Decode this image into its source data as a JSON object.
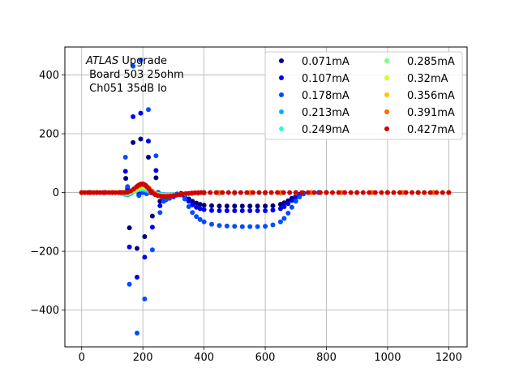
{
  "chart_data": {
    "type": "scatter",
    "annotation": {
      "experiment": "ATLAS",
      "experiment_suffix": " Upgrade",
      "line2": " Board 503 25ohm",
      "line3": " Ch051 35dB lo"
    },
    "xlim": [
      -55,
      1260
    ],
    "ylim": [
      -525,
      495
    ],
    "xticks": [
      0,
      200,
      400,
      600,
      800,
      1000,
      1200
    ],
    "yticks": [
      -400,
      -200,
      0,
      200,
      400
    ],
    "grid": true,
    "legend": {
      "position": "top-right",
      "ncol": 2
    },
    "series": [
      {
        "name": "0.071mA",
        "color": "#00007f",
        "x": [
          0,
          25,
          50,
          75,
          100,
          125,
          137,
          144,
          150,
          156,
          162,
          168,
          175,
          181,
          187,
          193,
          200,
          206,
          212,
          218,
          225,
          231,
          237,
          243,
          250,
          256,
          262,
          268,
          275,
          287,
          300,
          312,
          325,
          337,
          350,
          362,
          375,
          387,
          400,
          425,
          450,
          475,
          500,
          525,
          550,
          575,
          600,
          625,
          650,
          662,
          675,
          687,
          700,
          712,
          725,
          750,
          775,
          800,
          850,
          900,
          950,
          1000,
          1050,
          1100,
          1150,
          1200
        ],
        "y": [
          0,
          0,
          0,
          0,
          0,
          0,
          0,
          48,
          12,
          -120,
          -2,
          170,
          8,
          -190,
          -5,
          182,
          0,
          -150,
          -3,
          120,
          0,
          -80,
          -1,
          50,
          0,
          -30,
          -8,
          -14,
          -12,
          -10,
          -8,
          -5,
          -3,
          -10,
          -22,
          -30,
          -36,
          -40,
          -43,
          -45,
          -46,
          -46,
          -46,
          -46,
          -46,
          -46,
          -46,
          -45,
          -40,
          -35,
          -28,
          -20,
          -12,
          -6,
          -2,
          0,
          0,
          0,
          0,
          0,
          0,
          0,
          0,
          0,
          0,
          0
        ]
      },
      {
        "name": "0.107mA",
        "color": "#0000f1",
        "x": [
          0,
          25,
          50,
          75,
          100,
          125,
          137,
          143,
          150,
          156,
          162,
          168,
          175,
          181,
          187,
          193,
          200,
          206,
          212,
          218,
          225,
          231,
          237,
          243,
          250,
          256,
          262,
          268,
          275,
          287,
          300,
          312,
          325,
          337,
          350,
          362,
          375,
          387,
          400,
          425,
          450,
          475,
          500,
          525,
          550,
          575,
          600,
          625,
          650,
          662,
          675,
          687,
          700,
          712,
          725,
          750,
          775,
          800,
          850,
          900,
          950,
          1000,
          1050,
          1100,
          1150,
          1200
        ],
        "y": [
          0,
          0,
          0,
          0,
          0,
          0,
          0,
          72,
          15,
          -185,
          -2,
          258,
          10,
          -288,
          -6,
          270,
          0,
          -220,
          -3,
          175,
          0,
          -118,
          -2,
          75,
          0,
          -45,
          -10,
          -18,
          -15,
          -12,
          -10,
          -6,
          -4,
          -14,
          -30,
          -42,
          -50,
          -55,
          -58,
          -61,
          -62,
          -62,
          -62,
          -62,
          -62,
          -62,
          -62,
          -60,
          -55,
          -48,
          -38,
          -27,
          -16,
          -8,
          -3,
          0,
          0,
          0,
          0,
          0,
          0,
          0,
          0,
          0,
          0,
          0
        ]
      },
      {
        "name": "0.178mA",
        "color": "#004cff",
        "x": [
          0,
          25,
          50,
          75,
          100,
          125,
          137,
          143,
          150,
          156,
          162,
          168,
          175,
          181,
          187,
          193,
          200,
          206,
          212,
          218,
          225,
          231,
          237,
          243,
          250,
          256,
          262,
          268,
          275,
          287,
          300,
          312,
          325,
          337,
          350,
          362,
          375,
          387,
          400,
          425,
          450,
          475,
          500,
          525,
          550,
          575,
          600,
          625,
          650,
          662,
          675,
          687,
          700,
          712,
          725,
          750,
          775,
          800,
          850,
          900,
          950,
          1000,
          1050,
          1100,
          1150,
          1200
        ],
        "y": [
          0,
          0,
          0,
          0,
          0,
          0,
          0,
          120,
          20,
          -312,
          -3,
          430,
          15,
          -478,
          -10,
          450,
          0,
          -362,
          -4,
          282,
          0,
          -195,
          -3,
          125,
          0,
          -68,
          -14,
          -30,
          -25,
          -20,
          -15,
          -5,
          -8,
          -22,
          -48,
          -68,
          -82,
          -92,
          -100,
          -108,
          -112,
          -114,
          -115,
          -116,
          -116,
          -116,
          -115,
          -110,
          -100,
          -88,
          -70,
          -50,
          -30,
          -15,
          -5,
          0,
          0,
          0,
          0,
          0,
          0,
          0,
          0,
          0,
          0,
          0
        ]
      },
      {
        "name": "0.213mA",
        "color": "#00b0ff",
        "x": [
          0,
          50,
          100,
          130,
          140,
          150,
          160,
          170,
          180,
          190,
          200,
          210,
          220,
          230,
          240,
          250,
          260,
          270,
          280,
          290,
          300,
          320,
          340,
          360,
          380,
          400,
          450,
          500,
          550,
          600,
          650,
          700,
          750,
          800,
          850,
          900,
          950,
          1000,
          1050,
          1100,
          1150,
          1200
        ],
        "y": [
          0,
          0,
          0,
          -3,
          -6,
          -8,
          -4,
          3,
          8,
          10,
          10,
          8,
          4,
          0,
          -3,
          -5,
          -6,
          -7,
          -8,
          -8,
          -7,
          -6,
          -5,
          -4,
          -3,
          -3,
          -3,
          -3,
          -3,
          -3,
          -3,
          -2,
          -1,
          0,
          0,
          0,
          0,
          0,
          0,
          0,
          0,
          0
        ]
      },
      {
        "name": "0.249mA",
        "color": "#29ffce",
        "x": [
          0,
          50,
          100,
          130,
          140,
          150,
          160,
          170,
          180,
          190,
          200,
          210,
          220,
          230,
          240,
          250,
          260,
          270,
          280,
          290,
          300,
          320,
          340,
          360,
          380,
          400,
          450,
          500,
          550,
          600,
          650,
          700,
          750,
          800,
          850,
          900,
          950,
          1000,
          1050,
          1100,
          1150,
          1200
        ],
        "y": [
          0,
          0,
          0,
          -2,
          -4,
          -5,
          -2,
          3,
          8,
          12,
          13,
          11,
          6,
          1,
          -3,
          -6,
          -8,
          -9,
          -9,
          -9,
          -8,
          -7,
          -5,
          -4,
          -3,
          -2,
          -2,
          -2,
          -2,
          -2,
          -2,
          -1,
          -1,
          0,
          0,
          0,
          0,
          0,
          0,
          0,
          0,
          0
        ]
      },
      {
        "name": "0.285mA",
        "color": "#7dff7a",
        "x": [
          0,
          50,
          100,
          130,
          140,
          150,
          160,
          170,
          180,
          190,
          200,
          210,
          220,
          230,
          240,
          250,
          260,
          270,
          280,
          290,
          300,
          320,
          340,
          360,
          380,
          400,
          450,
          500,
          550,
          600,
          650,
          700,
          750,
          800,
          850,
          900,
          950,
          1000,
          1050,
          1100,
          1150,
          1200
        ],
        "y": [
          0,
          0,
          0,
          -1,
          -2,
          -3,
          0,
          5,
          11,
          16,
          18,
          15,
          9,
          3,
          -3,
          -7,
          -9,
          -10,
          -10,
          -10,
          -9,
          -7,
          -5,
          -3,
          -2,
          -1,
          -1,
          -1,
          -1,
          -1,
          -1,
          -1,
          0,
          0,
          0,
          0,
          0,
          0,
          0,
          0,
          0,
          0
        ]
      },
      {
        "name": "0.32mA",
        "color": "#ceff29",
        "x": [
          0,
          50,
          100,
          130,
          140,
          150,
          160,
          170,
          180,
          190,
          200,
          210,
          220,
          230,
          240,
          250,
          260,
          270,
          280,
          290,
          300,
          320,
          340,
          360,
          380,
          400,
          450,
          500,
          550,
          600,
          650,
          700,
          750,
          800,
          850,
          900,
          950,
          1000,
          1050,
          1100,
          1150,
          1200
        ],
        "y": [
          0,
          0,
          0,
          0,
          0,
          0,
          3,
          8,
          14,
          20,
          22,
          19,
          12,
          4,
          -3,
          -8,
          -10,
          -11,
          -11,
          -11,
          -10,
          -7,
          -4,
          -2,
          -1,
          -1,
          0,
          0,
          0,
          0,
          0,
          0,
          0,
          0,
          0,
          0,
          0,
          0,
          0,
          0,
          0,
          0
        ]
      },
      {
        "name": "0.356mA",
        "color": "#ffc400",
        "x": [
          0,
          50,
          100,
          130,
          140,
          150,
          160,
          170,
          180,
          190,
          200,
          210,
          220,
          230,
          240,
          250,
          260,
          270,
          280,
          290,
          300,
          320,
          340,
          360,
          380,
          400,
          450,
          500,
          550,
          600,
          650,
          700,
          750,
          800,
          850,
          900,
          950,
          1000,
          1050,
          1100,
          1150,
          1200
        ],
        "y": [
          0,
          0,
          0,
          0,
          0,
          1,
          4,
          10,
          17,
          23,
          25,
          22,
          14,
          5,
          -3,
          -9,
          -11,
          -12,
          -12,
          -11,
          -10,
          -7,
          -4,
          -2,
          -1,
          0,
          0,
          0,
          0,
          0,
          0,
          0,
          0,
          0,
          0,
          0,
          0,
          0,
          0,
          0,
          0,
          0
        ]
      },
      {
        "name": "0.391mA",
        "color": "#ff6800",
        "x": [
          0,
          50,
          100,
          130,
          140,
          150,
          160,
          170,
          180,
          190,
          200,
          210,
          220,
          230,
          240,
          250,
          260,
          270,
          280,
          290,
          300,
          320,
          340,
          360,
          380,
          400,
          450,
          500,
          550,
          600,
          650,
          700,
          750,
          800,
          850,
          900,
          950,
          1000,
          1050,
          1100,
          1150,
          1200
        ],
        "y": [
          0,
          0,
          0,
          0,
          0,
          1,
          5,
          11,
          19,
          25,
          27,
          24,
          15,
          5,
          -4,
          -10,
          -12,
          -13,
          -13,
          -12,
          -10,
          -7,
          -4,
          -2,
          -1,
          0,
          0,
          0,
          0,
          0,
          0,
          0,
          0,
          0,
          0,
          0,
          0,
          0,
          0,
          0,
          0,
          0
        ]
      },
      {
        "name": "0.427mA",
        "color": "#d40000",
        "x": [
          0,
          10,
          20,
          30,
          40,
          50,
          60,
          70,
          80,
          90,
          100,
          110,
          120,
          130,
          140,
          150,
          160,
          170,
          180,
          185,
          190,
          195,
          200,
          205,
          210,
          215,
          220,
          225,
          230,
          240,
          250,
          260,
          270,
          280,
          290,
          300,
          310,
          320,
          330,
          340,
          350,
          360,
          370,
          380,
          390,
          400,
          420,
          440,
          460,
          480,
          500,
          520,
          540,
          560,
          580,
          600,
          620,
          640,
          660,
          680,
          700,
          720,
          740,
          760,
          780,
          800,
          820,
          840,
          860,
          880,
          900,
          920,
          940,
          960,
          980,
          1000,
          1020,
          1040,
          1060,
          1080,
          1100,
          1120,
          1140,
          1160,
          1180,
          1200
        ],
        "y": [
          0,
          0,
          0,
          0,
          0,
          0,
          0,
          0,
          0,
          0,
          0,
          0,
          0,
          0,
          0,
          1,
          5,
          12,
          20,
          24,
          27,
          29,
          29,
          27,
          23,
          18,
          12,
          5,
          -1,
          -7,
          -11,
          -13,
          -13,
          -13,
          -12,
          -11,
          -9,
          -7,
          -5,
          -4,
          -3,
          -2,
          -1,
          -1,
          0,
          0,
          0,
          0,
          0,
          0,
          0,
          0,
          0,
          0,
          0,
          0,
          0,
          0,
          0,
          0,
          0,
          0,
          0,
          0,
          0,
          0,
          0,
          0,
          0,
          0,
          0,
          0,
          0,
          0,
          0,
          0,
          0,
          0,
          0,
          0,
          0,
          0,
          0,
          0,
          0,
          0
        ]
      }
    ]
  }
}
